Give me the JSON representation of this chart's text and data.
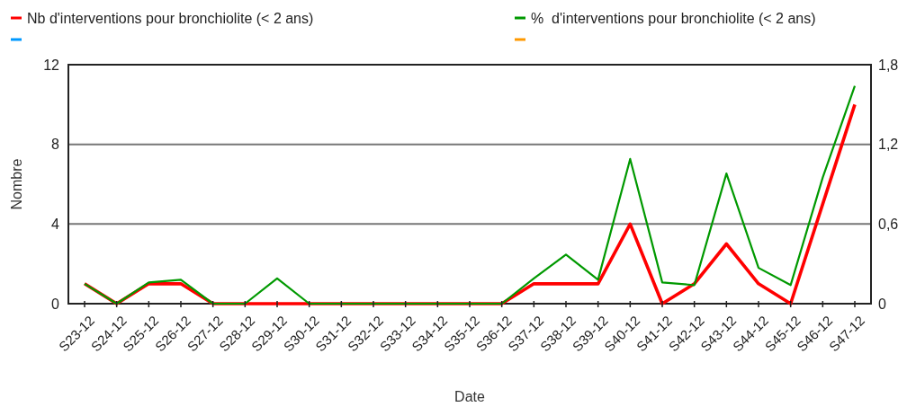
{
  "chart_data": {
    "type": "line",
    "xlabel": "Date",
    "ylabel": "Nombre",
    "categories": [
      "S23-12",
      "S24-12",
      "S25-12",
      "S26-12",
      "S27-12",
      "S28-12",
      "S29-12",
      "S30-12",
      "S31-12",
      "S32-12",
      "S33-12",
      "S34-12",
      "S35-12",
      "S36-12",
      "S37-12",
      "S38-12",
      "S39-12",
      "S40-12",
      "S41-12",
      "S42-12",
      "S43-12",
      "S44-12",
      "S45-12",
      "S46-12",
      "S47-12"
    ],
    "series": [
      {
        "name": "Nb d'interventions pour bronchiolite (< 2 ans)",
        "color": "#ff0000",
        "values": [
          1,
          0,
          1,
          1,
          0,
          0,
          0,
          0,
          0,
          0,
          0,
          0,
          0,
          0,
          1,
          1,
          1,
          4,
          0,
          1,
          3,
          1,
          0,
          5,
          10
        ]
      },
      {
        "name": "%  d'interventions pour bronchiolite (< 2 ans)",
        "color": "#009900",
        "axis": "y2",
        "values": [
          0.15,
          0,
          0.16,
          0.18,
          0,
          0,
          0.19,
          0,
          0,
          0,
          0,
          0,
          0,
          0,
          0.19,
          0.37,
          0.18,
          1.09,
          0.16,
          0.14,
          0.98,
          0.27,
          0.14,
          0.95,
          1.64
        ]
      },
      {
        "color": "#0099ff",
        "values": [
          null,
          null,
          null,
          null,
          null,
          null,
          null,
          null,
          null,
          null,
          null,
          null,
          null,
          null,
          null,
          null,
          null,
          null,
          null,
          null,
          null,
          null,
          null,
          null,
          null
        ]
      },
      {
        "color": "#ff9900",
        "axis": "y2",
        "values": [
          null,
          null,
          null,
          null,
          null,
          null,
          null,
          null,
          null,
          null,
          null,
          null,
          null,
          null,
          null,
          null,
          null,
          null,
          null,
          null,
          null,
          null,
          null,
          null,
          null
        ]
      }
    ],
    "ylim": [
      0,
      12
    ],
    "yticks": [
      0,
      4,
      8,
      12
    ],
    "y2lim": [
      0,
      1.8
    ],
    "y2ticks": [
      0,
      {
        "value": 0.6,
        "label": "0,6"
      },
      {
        "value": 1.2,
        "label": "1,2"
      },
      {
        "value": 1.8,
        "label": "1,8"
      }
    ],
    "grid": "y",
    "legend": "top",
    "marker": "none",
    "line_style": "solid"
  }
}
